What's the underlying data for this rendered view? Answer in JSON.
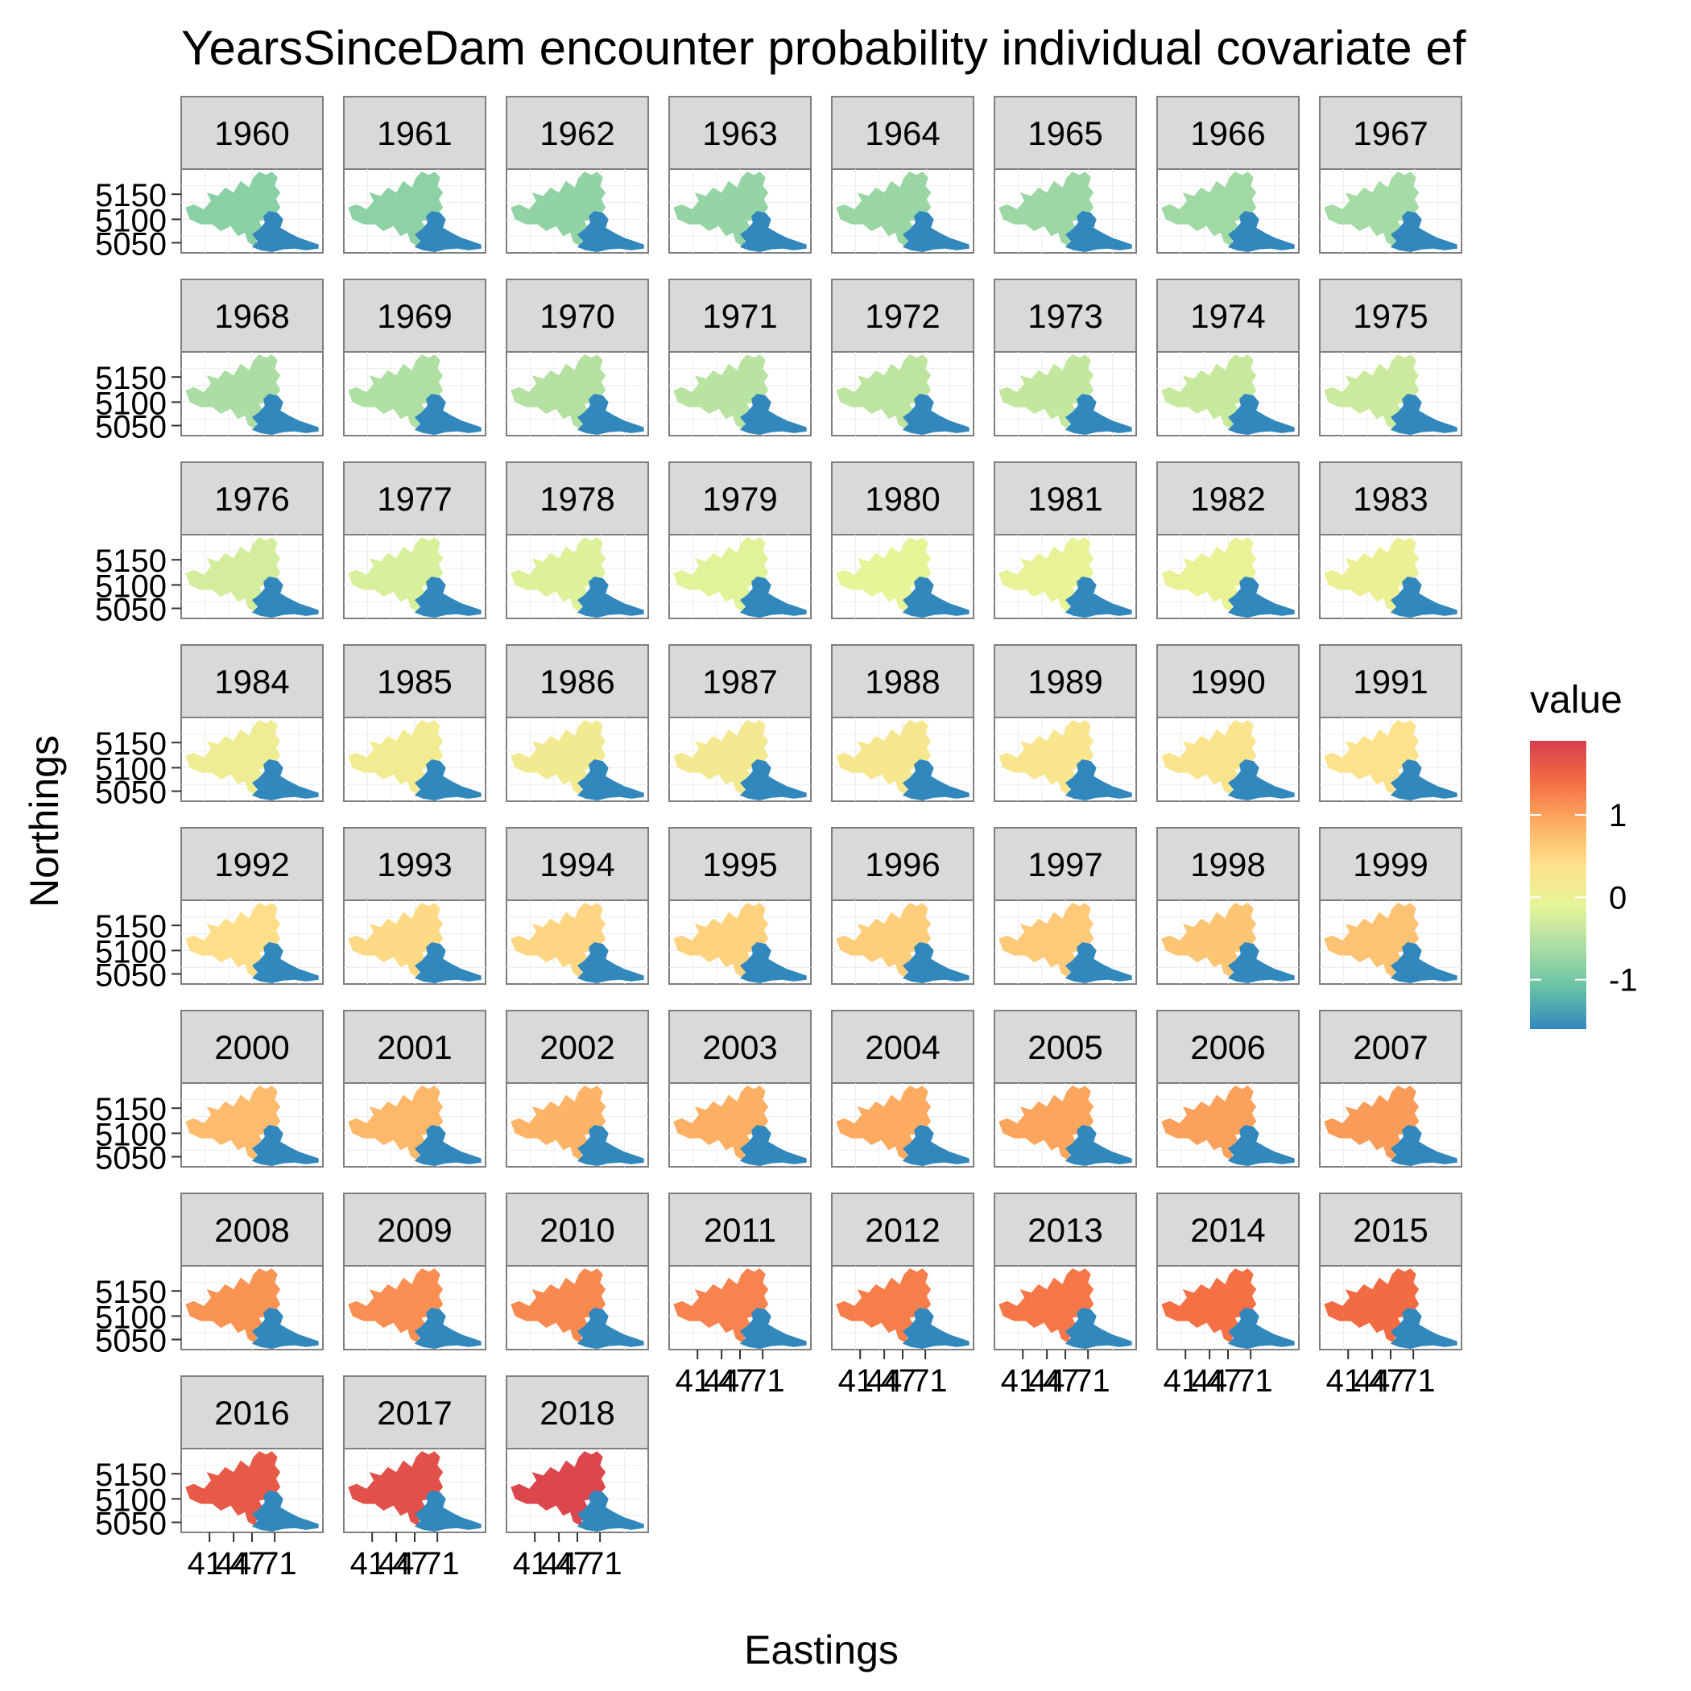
{
  "chart_data": {
    "type": "faceted-map",
    "title": "YearsSinceDam encounter probability individual covariate ef",
    "xlabel": "Eastings",
    "ylabel": "Northings",
    "legend": {
      "title": "value",
      "placement": "right",
      "ticks": [
        1,
        0,
        -1
      ],
      "tick_labels": [
        "1",
        "0",
        "-1"
      ],
      "range": [
        -1.6,
        1.9
      ],
      "palette": [
        "#3288bd",
        "#66c2a5",
        "#abdda4",
        "#e6f598",
        "#fee08b",
        "#fdae61",
        "#f46d43",
        "#d53e4f"
      ]
    },
    "y_tick_labels": [
      "5150",
      "5100",
      "5050"
    ],
    "x_tick_labels": [
      "41",
      "44",
      "47",
      "71"
    ],
    "lower_region_value": -1.6,
    "years": [
      "1960",
      "1961",
      "1962",
      "1963",
      "1964",
      "1965",
      "1966",
      "1967",
      "1968",
      "1969",
      "1970",
      "1971",
      "1972",
      "1973",
      "1974",
      "1975",
      "1976",
      "1977",
      "1978",
      "1979",
      "1980",
      "1981",
      "1982",
      "1983",
      "1984",
      "1985",
      "1986",
      "1987",
      "1988",
      "1989",
      "1990",
      "1991",
      "1992",
      "1993",
      "1994",
      "1995",
      "1996",
      "1997",
      "1998",
      "1999",
      "2000",
      "2001",
      "2002",
      "2003",
      "2004",
      "2005",
      "2006",
      "2007",
      "2008",
      "2009",
      "2010",
      "2011",
      "2012",
      "2013",
      "2014",
      "2015",
      "2016",
      "2017",
      "2018"
    ],
    "upper_region_values": [
      -0.85,
      -0.82,
      -0.79,
      -0.76,
      -0.73,
      -0.7,
      -0.67,
      -0.64,
      -0.6,
      -0.56,
      -0.52,
      -0.48,
      -0.44,
      -0.4,
      -0.36,
      -0.32,
      -0.26,
      -0.22,
      -0.18,
      -0.14,
      -0.1,
      -0.06,
      -0.02,
      0.02,
      0.08,
      0.12,
      0.16,
      0.2,
      0.24,
      0.28,
      0.32,
      0.36,
      0.42,
      0.46,
      0.5,
      0.54,
      0.58,
      0.62,
      0.66,
      0.7,
      0.76,
      0.8,
      0.84,
      0.88,
      0.92,
      0.96,
      1.0,
      1.04,
      1.1,
      1.14,
      1.18,
      1.22,
      1.27,
      1.32,
      1.37,
      1.42,
      1.6,
      1.7,
      1.8
    ]
  }
}
